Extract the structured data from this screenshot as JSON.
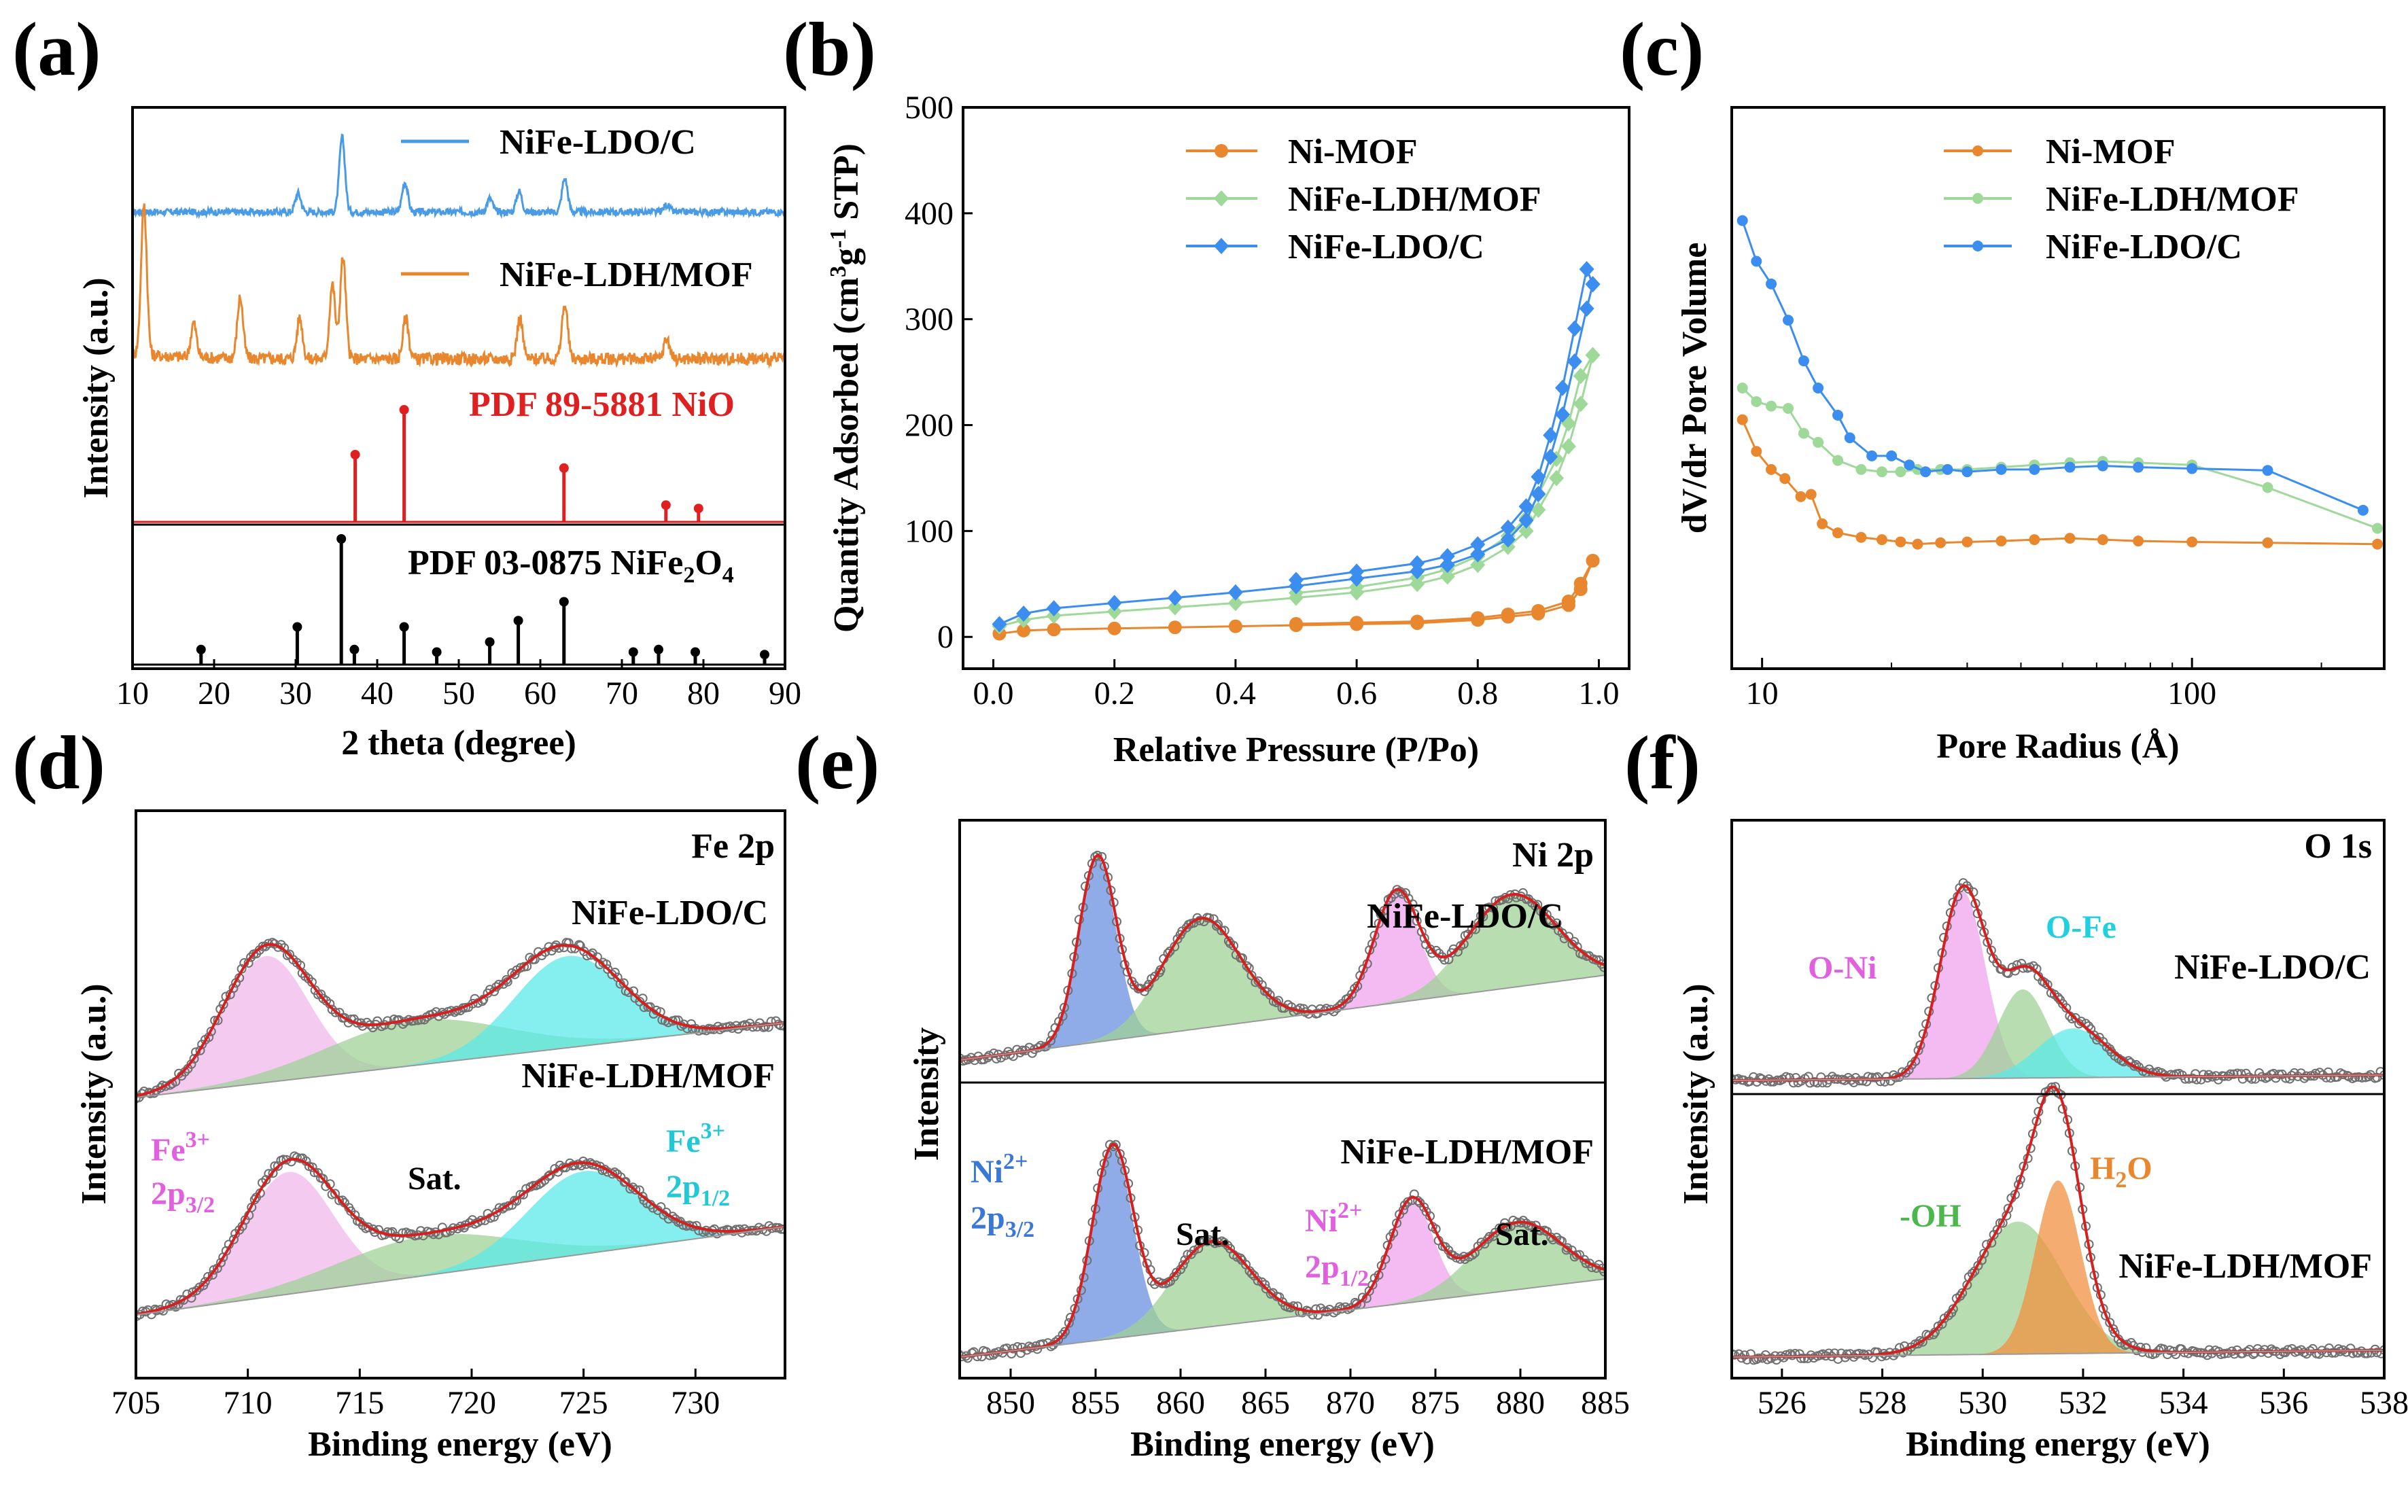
{
  "chart_data": [
    {
      "panel": "(a)",
      "type": "line",
      "xlabel": "2 theta (degree)",
      "ylabel": "Intensity (a.u.)",
      "xlim": [
        10,
        90
      ],
      "xticks": [
        10,
        20,
        30,
        40,
        50,
        60,
        70,
        80,
        90
      ],
      "series": [
        {
          "name": "NiFe-LDO/C",
          "color": "#4a9be6",
          "peaks": [
            {
              "x": 30.3,
              "h": 0.25
            },
            {
              "x": 35.7,
              "h": 1.0
            },
            {
              "x": 43.4,
              "h": 0.4
            },
            {
              "x": 53.8,
              "h": 0.18
            },
            {
              "x": 57.4,
              "h": 0.28
            },
            {
              "x": 63.0,
              "h": 0.45
            },
            {
              "x": 75.5,
              "h": 0.1
            }
          ]
        },
        {
          "name": "NiFe-LDH/MOF",
          "color": "#e8872e",
          "peaks": [
            {
              "x": 11.4,
              "h": 1.1
            },
            {
              "x": 17.5,
              "h": 0.25
            },
            {
              "x": 23.2,
              "h": 0.45
            },
            {
              "x": 30.5,
              "h": 0.3
            },
            {
              "x": 34.5,
              "h": 0.55
            },
            {
              "x": 35.8,
              "h": 0.75
            },
            {
              "x": 43.5,
              "h": 0.3
            },
            {
              "x": 57.5,
              "h": 0.3
            },
            {
              "x": 63.0,
              "h": 0.4
            },
            {
              "x": 75.5,
              "h": 0.15
            }
          ]
        }
      ],
      "references": [
        {
          "label": "PDF 89-5881 NiO",
          "color": "#e02020",
          "lines": [
            {
              "x": 37.3,
              "h": 0.6
            },
            {
              "x": 43.3,
              "h": 1.0
            },
            {
              "x": 62.9,
              "h": 0.48
            },
            {
              "x": 75.4,
              "h": 0.15
            },
            {
              "x": 79.4,
              "h": 0.12
            }
          ]
        },
        {
          "label_prefix": "PDF 03-0875 NiFe",
          "label_sub1": "2",
          "label_mid": "O",
          "label_sub2": "4",
          "color": "#000000",
          "lines": [
            {
              "x": 18.4,
              "h": 0.12
            },
            {
              "x": 30.2,
              "h": 0.3
            },
            {
              "x": 35.6,
              "h": 1.0
            },
            {
              "x": 37.2,
              "h": 0.12
            },
            {
              "x": 43.3,
              "h": 0.3
            },
            {
              "x": 47.3,
              "h": 0.1
            },
            {
              "x": 53.8,
              "h": 0.18
            },
            {
              "x": 57.3,
              "h": 0.35
            },
            {
              "x": 62.9,
              "h": 0.5
            },
            {
              "x": 71.4,
              "h": 0.1
            },
            {
              "x": 74.5,
              "h": 0.12
            },
            {
              "x": 79.0,
              "h": 0.1
            },
            {
              "x": 87.5,
              "h": 0.08
            }
          ]
        }
      ]
    },
    {
      "panel": "(b)",
      "type": "line",
      "xlabel": "Relative Pressure (P/Po)",
      "ylabel_prefix": "Quantity Adsorbed (cm",
      "ylabel_sup1": "3",
      "ylabel_mid": "g",
      "ylabel_sup2": "-1",
      "ylabel_suffix": " STP)",
      "xlim": [
        -0.05,
        1.05
      ],
      "ylim": [
        -30,
        500
      ],
      "xticks": [
        "0.0",
        "0.2",
        "0.4",
        "0.6",
        "0.8",
        "1.0"
      ],
      "yticks": [
        0,
        100,
        200,
        300,
        400,
        500
      ],
      "series": [
        {
          "name": "Ni-MOF",
          "color": "#e8872e",
          "marker": "circle",
          "x": [
            0.01,
            0.05,
            0.1,
            0.2,
            0.3,
            0.4,
            0.5,
            0.6,
            0.7,
            0.8,
            0.85,
            0.9,
            0.95,
            0.97,
            0.99
          ],
          "y": [
            3,
            6,
            7,
            8,
            9,
            10,
            11,
            12,
            13,
            16,
            19,
            22,
            30,
            45,
            72
          ]
        },
        {
          "name": "NiFe-LDH/MOF",
          "color": "#9ed99a",
          "marker": "diamond",
          "x": [
            0.01,
            0.05,
            0.1,
            0.2,
            0.3,
            0.4,
            0.5,
            0.6,
            0.7,
            0.75,
            0.8,
            0.85,
            0.88,
            0.9,
            0.93,
            0.95,
            0.97,
            0.99
          ],
          "y": [
            10,
            16,
            20,
            24,
            28,
            32,
            37,
            42,
            50,
            57,
            68,
            85,
            100,
            120,
            150,
            180,
            220,
            266
          ]
        },
        {
          "name": "NiFe-LDO/C",
          "color": "#3b8ef0",
          "marker": "diamond",
          "x": [
            0.01,
            0.05,
            0.1,
            0.2,
            0.3,
            0.4,
            0.5,
            0.6,
            0.7,
            0.75,
            0.8,
            0.85,
            0.88,
            0.9,
            0.92,
            0.94,
            0.96,
            0.98,
            0.99
          ],
          "y": [
            12,
            22,
            27,
            32,
            37,
            42,
            48,
            55,
            62,
            68,
            78,
            92,
            110,
            135,
            170,
            210,
            260,
            310,
            333
          ]
        }
      ]
    },
    {
      "panel": "(c)",
      "type": "line",
      "xlabel": "Pore Radius (Å)",
      "ylabel": "dV/dr Pore Volume",
      "xscale": "log",
      "xlim": [
        8.5,
        280
      ],
      "ylim": [
        0,
        1
      ],
      "xticks": [
        10,
        100
      ],
      "series": [
        {
          "name": "Ni-MOF",
          "color": "#e8872e",
          "x": [
            9,
            9.7,
            10.5,
            11.3,
            12.3,
            13,
            13.8,
            15,
            17,
            19,
            21,
            23,
            26,
            30,
            36,
            43,
            52,
            62,
            75,
            100,
            150,
            270
          ],
          "y": [
            0.43,
            0.36,
            0.32,
            0.3,
            0.26,
            0.265,
            0.2,
            0.18,
            0.17,
            0.165,
            0.16,
            0.155,
            0.158,
            0.16,
            0.162,
            0.165,
            0.168,
            0.165,
            0.162,
            0.16,
            0.158,
            0.155
          ]
        },
        {
          "name": "NiFe-LDH/MOF",
          "color": "#9ed99a",
          "x": [
            9,
            9.7,
            10.5,
            11.5,
            12.5,
            13.5,
            15,
            17,
            19,
            21,
            23,
            26,
            30,
            36,
            43,
            52,
            62,
            75,
            100,
            150,
            270
          ],
          "y": [
            0.5,
            0.47,
            0.46,
            0.455,
            0.4,
            0.38,
            0.34,
            0.32,
            0.315,
            0.315,
            0.32,
            0.32,
            0.32,
            0.325,
            0.33,
            0.335,
            0.338,
            0.335,
            0.33,
            0.28,
            0.19
          ]
        },
        {
          "name": "NiFe-LDO/C",
          "color": "#3b8ef0",
          "x": [
            9,
            9.7,
            10.5,
            11.5,
            12.5,
            13.5,
            15,
            16,
            18,
            20,
            22,
            24,
            27,
            30,
            36,
            43,
            52,
            62,
            75,
            100,
            150,
            250
          ],
          "y": [
            0.87,
            0.78,
            0.73,
            0.65,
            0.56,
            0.5,
            0.44,
            0.39,
            0.35,
            0.35,
            0.33,
            0.315,
            0.32,
            0.315,
            0.32,
            0.32,
            0.325,
            0.328,
            0.325,
            0.322,
            0.318,
            0.23
          ]
        }
      ]
    },
    {
      "panel": "(d)",
      "type": "line",
      "title": "Fe 2p",
      "xlabel": "Binding energy (eV)",
      "ylabel": "Intensity (a.u.)",
      "xlim": [
        705,
        734
      ],
      "xticks": [
        705,
        710,
        715,
        720,
        725,
        730
      ],
      "spectra": [
        {
          "label": "NiFe-LDO/C",
          "peaks": [
            {
              "name": "Fe3+ 2p3/2",
              "center": 710.8,
              "height": 0.62,
              "width": 1.9,
              "color": "#f0b8ec"
            },
            {
              "name": "Sat.",
              "center": 717.5,
              "height": 0.22,
              "width": 4.0,
              "color": "#9fd197"
            },
            {
              "name": "Fe3+ 2p1/2",
              "center": 724.3,
              "height": 0.45,
              "width": 2.4,
              "color": "#5ce8e8"
            }
          ]
        },
        {
          "label": "NiFe-LDH/MOF",
          "peaks": [
            {
              "name": "Fe3+ 2p3/2",
              "center": 711.8,
              "height": 0.62,
              "width": 2.0,
              "color": "#f0b8ec"
            },
            {
              "name": "Sat.",
              "center": 718.0,
              "height": 0.2,
              "width": 4.0,
              "color": "#9fd197"
            },
            {
              "name": "Fe3+ 2p1/2",
              "center": 725.0,
              "height": 0.42,
              "width": 2.5,
              "color": "#5ce8e8"
            }
          ]
        }
      ],
      "annotations": {
        "fe_a": "Fe",
        "fe_sup": "3+",
        "p32_a": "2p",
        "p32_sub": "3/2",
        "sat": "Sat.",
        "p12_a": "2p",
        "p12_sub": "1/2"
      }
    },
    {
      "panel": "(e)",
      "type": "line",
      "title": "Ni 2p",
      "xlabel": "Binding energy (eV)",
      "ylabel": "Intensity",
      "xlim": [
        847,
        885
      ],
      "xticks": [
        850,
        855,
        860,
        865,
        870,
        875,
        880,
        885
      ],
      "spectra": [
        {
          "label": "NiFe-LDO/C",
          "peaks": [
            {
              "name": "Ni2+ 2p3/2",
              "center": 855.1,
              "height": 0.75,
              "width": 1.1,
              "color": "#6a90e0"
            },
            {
              "name": "Sat.",
              "center": 861.2,
              "height": 0.45,
              "width": 2.3,
              "color": "#9fd197"
            },
            {
              "name": "Ni2+ 2p1/2",
              "center": 872.7,
              "height": 0.45,
              "width": 1.3,
              "color": "#f0a4ee"
            },
            {
              "name": "Sat.",
              "center": 879.5,
              "height": 0.38,
              "width": 2.6,
              "color": "#9fd197"
            }
          ]
        },
        {
          "label": "NiFe-LDH/MOF",
          "peaks": [
            {
              "name": "Ni2+ 2p3/2",
              "center": 856.0,
              "height": 0.85,
              "width": 1.2,
              "color": "#6a90e0"
            },
            {
              "name": "Sat.",
              "center": 861.8,
              "height": 0.38,
              "width": 2.3,
              "color": "#9fd197"
            },
            {
              "name": "Ni2+ 2p1/2",
              "center": 873.6,
              "height": 0.45,
              "width": 1.3,
              "color": "#f0a4ee"
            },
            {
              "name": "Sat.",
              "center": 879.8,
              "height": 0.3,
              "width": 2.6,
              "color": "#9fd197"
            }
          ]
        }
      ],
      "annotations": {
        "ni_a": "Ni",
        "ni_sup": "2+",
        "p32_a": "2p",
        "p32_sub": "3/2",
        "sat1": "Sat.",
        "p12_a": "2p",
        "p12_sub": "1/2",
        "sat2": "Sat."
      }
    },
    {
      "panel": "(f)",
      "type": "line",
      "title": "O 1s",
      "xlabel": "Binding energy (eV)",
      "ylabel": "Intensity (a.u.)",
      "xlim": [
        525,
        538
      ],
      "xticks": [
        526,
        528,
        530,
        532,
        534,
        536,
        538
      ],
      "spectra": [
        {
          "label": "NiFe-LDO/C",
          "peaks": [
            {
              "name": "O-Ni",
              "center": 529.6,
              "height": 0.95,
              "width": 0.45,
              "color": "#f0a4ee"
            },
            {
              "name": "",
              "center": 530.8,
              "height": 0.45,
              "width": 0.5,
              "color": "#9fd197"
            },
            {
              "name": "O-Fe",
              "center": 531.8,
              "height": 0.25,
              "width": 0.7,
              "color": "#5ce8e8"
            }
          ]
        },
        {
          "label": "NiFe-LDH/MOF",
          "peaks": [
            {
              "name": "-OH",
              "center": 530.7,
              "height": 0.65,
              "width": 0.9,
              "color": "#9fd197"
            },
            {
              "name": "H2O",
              "center": 531.5,
              "height": 0.85,
              "width": 0.45,
              "color": "#f29040"
            }
          ]
        }
      ],
      "annotations": {
        "oni": "O-Ni",
        "ofe": "O-Fe",
        "oh": "-OH",
        "h2o_h": "H",
        "h2o_sub": "2",
        "h2o_o": "O"
      }
    }
  ]
}
